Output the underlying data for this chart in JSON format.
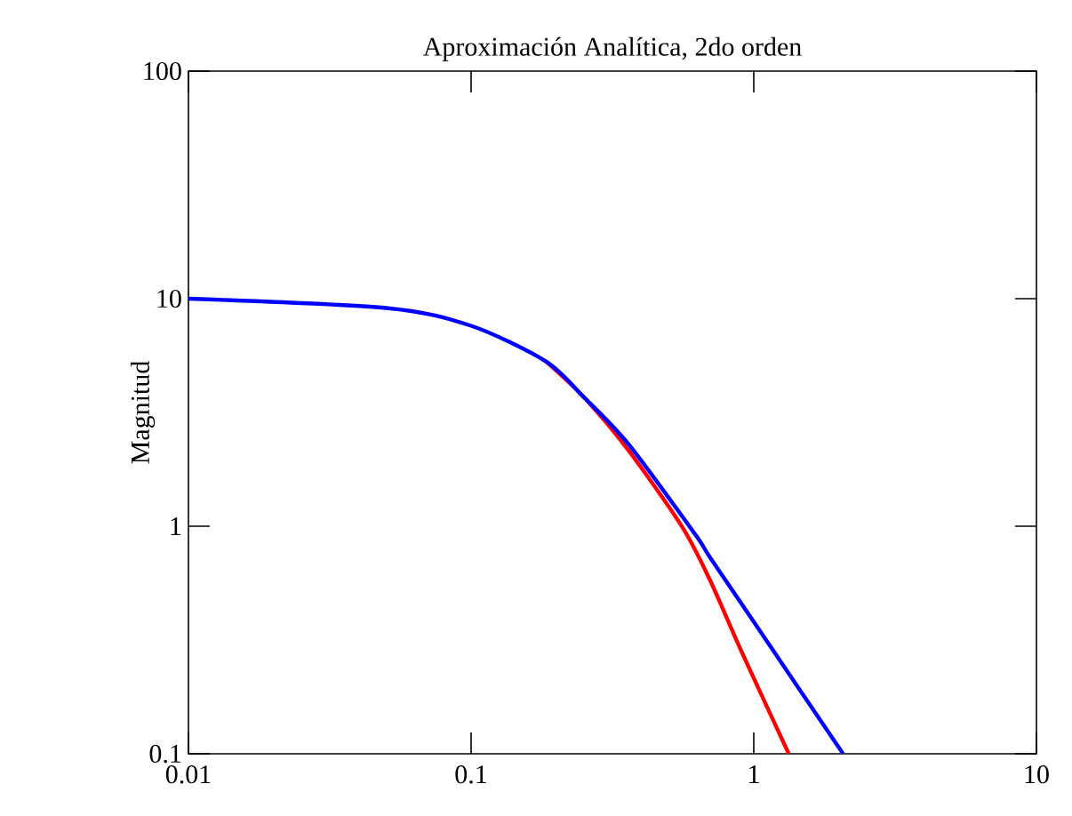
{
  "chart_data": {
    "type": "line",
    "title": "Aproximación Analítica, 2do orden",
    "ylabel": "Magnitud",
    "log": "xy",
    "xlim": [
      0.01,
      10
    ],
    "ylim": [
      0.1,
      100
    ],
    "xticks": [
      0.01,
      0.1,
      1,
      10
    ],
    "yticks": [
      0.1,
      1,
      10,
      100
    ],
    "grid": false,
    "marker": "none",
    "line_style": "solid",
    "series": [
      {
        "color": "#ff0000",
        "x": [
          0.184,
          0.25,
          0.361,
          0.559,
          0.7,
          0.907,
          1.33
        ],
        "values": [
          5.3,
          3.7,
          2.15,
          0.99,
          0.58,
          0.28,
          0.1
        ]
      },
      {
        "color": "#0000ff",
        "x": [
          0.01,
          0.05,
          0.1,
          0.184,
          0.25,
          0.361,
          0.617,
          0.7,
          1,
          2.07
        ],
        "values": [
          10,
          9.1,
          7.6,
          5.3,
          3.7,
          2.29,
          0.93,
          0.73,
          0.38,
          0.1
        ]
      }
    ]
  }
}
